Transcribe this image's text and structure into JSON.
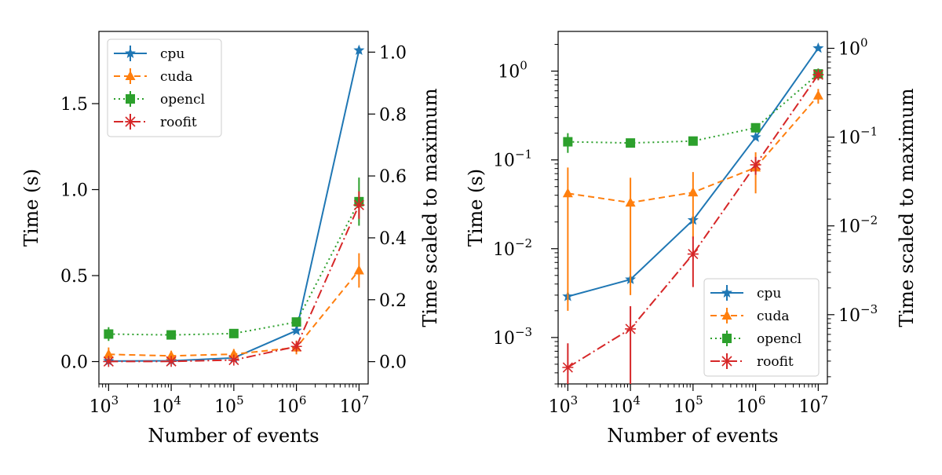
{
  "chart_data": [
    {
      "type": "line",
      "id": "left",
      "xscale": "log",
      "yscale": "linear",
      "xlabel": "Number of events",
      "ylabel": "Time (s)",
      "y2label": "Time scaled to maximum",
      "xlim": [
        700,
        14000000
      ],
      "ylim": [
        -0.13,
        1.92
      ],
      "y2lim": [
        -0.072,
        1.067
      ],
      "x": [
        1000,
        10000,
        100000,
        1000000,
        10000000
      ],
      "xticks": [
        1000,
        10000,
        100000,
        1000000,
        10000000
      ],
      "xtick_exponents": [
        "3",
        "4",
        "5",
        "6",
        "7"
      ],
      "yticks": [
        0.0,
        0.5,
        1.0,
        1.5
      ],
      "ytick_labels": [
        "0.0",
        "0.5",
        "1.0",
        "1.5"
      ],
      "y2ticks": [
        0.0,
        0.2,
        0.4,
        0.6,
        0.8,
        1.0
      ],
      "y2tick_labels": [
        "0.0",
        "0.2",
        "0.4",
        "0.6",
        "0.8",
        "1.0"
      ],
      "legend_position": "top-left",
      "series": [
        {
          "name": "cpu",
          "color": "#1f77b4",
          "marker": "star",
          "dash": "",
          "values": [
            0.0029,
            0.0045,
            0.021,
            0.18,
            1.81
          ],
          "err": [
            0.0003,
            0.0004,
            0.002,
            0.01,
            0.02
          ]
        },
        {
          "name": "cuda",
          "color": "#ff7f0e",
          "marker": "triangle",
          "dash": "8,5",
          "values": [
            0.042,
            0.033,
            0.043,
            0.082,
            0.53
          ],
          "err": [
            0.04,
            0.03,
            0.03,
            0.04,
            0.1
          ]
        },
        {
          "name": "opencl",
          "color": "#2ca02c",
          "marker": "square",
          "dash": "2,4",
          "values": [
            0.16,
            0.155,
            0.163,
            0.23,
            0.93
          ],
          "err": [
            0.04,
            0.01,
            0.01,
            0.02,
            0.14
          ]
        },
        {
          "name": "roofit",
          "color": "#d62728",
          "marker": "x-star",
          "dash": "12,4,2,4",
          "values": [
            0.00046,
            0.00125,
            0.0087,
            0.088,
            0.91
          ],
          "err": [
            0.0004,
            0.001,
            0.005,
            0.02,
            0.08
          ]
        }
      ]
    },
    {
      "type": "line",
      "id": "right",
      "xscale": "log",
      "yscale": "log",
      "xlabel": "Number of events",
      "ylabel": "Time (s)",
      "y2label": "Time scaled to maximum",
      "xlim": [
        700,
        14000000
      ],
      "ylim": [
        0.0003,
        2.8
      ],
      "y2lim": [
        0.000166,
        1.55
      ],
      "x": [
        1000,
        10000,
        100000,
        1000000,
        10000000
      ],
      "xticks": [
        1000,
        10000,
        100000,
        1000000,
        10000000
      ],
      "xtick_exponents": [
        "3",
        "4",
        "5",
        "6",
        "7"
      ],
      "yticks": [
        0.001,
        0.01,
        0.1,
        1.0
      ],
      "ytick_exponents": [
        "−3",
        "−2",
        "−1",
        "0"
      ],
      "y2ticks": [
        0.001,
        0.01,
        0.1,
        1.0
      ],
      "y2tick_exponents": [
        "−3",
        "−2",
        "−1",
        "0"
      ],
      "legend_position": "bottom-right",
      "series": [
        {
          "name": "cpu",
          "color": "#1f77b4",
          "marker": "star",
          "dash": "",
          "values": [
            0.0029,
            0.0045,
            0.021,
            0.18,
            1.81
          ],
          "err": [
            0.0003,
            0.0004,
            0.002,
            0.01,
            0.02
          ]
        },
        {
          "name": "cuda",
          "color": "#ff7f0e",
          "marker": "triangle",
          "dash": "8,5",
          "values": [
            0.042,
            0.033,
            0.043,
            0.082,
            0.53
          ],
          "err": [
            0.04,
            0.03,
            0.03,
            0.04,
            0.1
          ]
        },
        {
          "name": "opencl",
          "color": "#2ca02c",
          "marker": "square",
          "dash": "2,4",
          "values": [
            0.16,
            0.155,
            0.163,
            0.23,
            0.93
          ],
          "err": [
            0.04,
            0.01,
            0.01,
            0.02,
            0.14
          ]
        },
        {
          "name": "roofit",
          "color": "#d62728",
          "marker": "x-star",
          "dash": "12,4,2,4",
          "values": [
            0.00046,
            0.00125,
            0.0087,
            0.088,
            0.91
          ],
          "err": [
            0.0004,
            0.001,
            0.005,
            0.02,
            0.08
          ]
        }
      ]
    }
  ]
}
